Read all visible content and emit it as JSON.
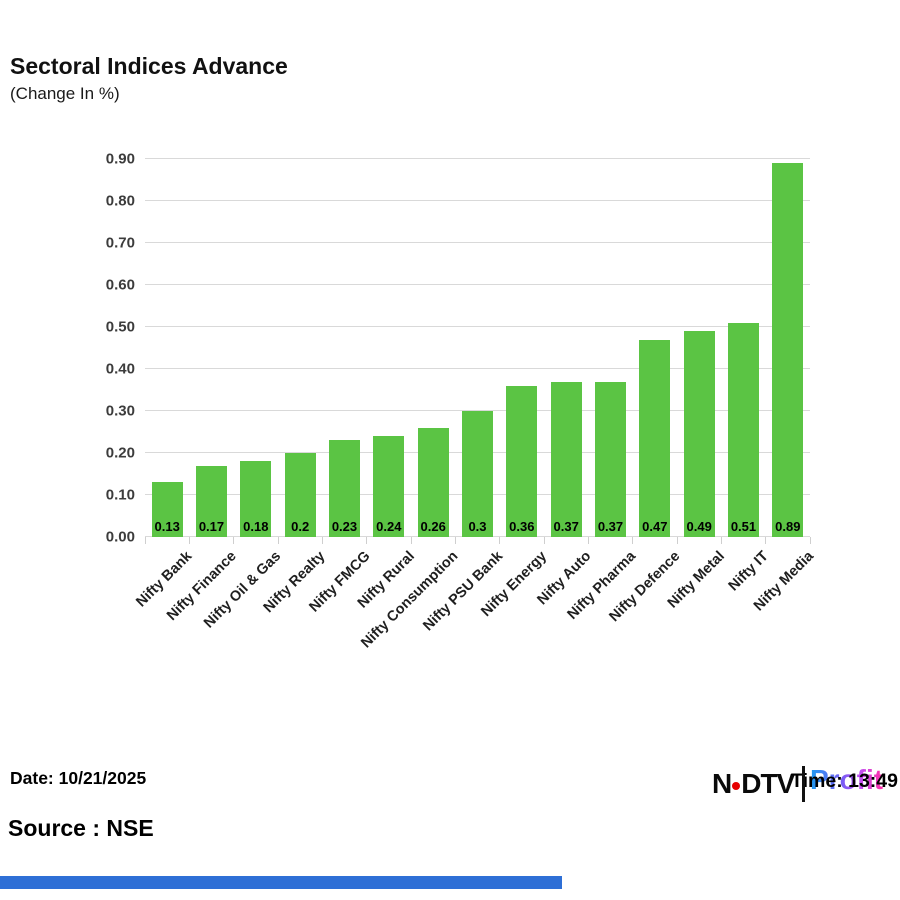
{
  "header": {
    "title": "Sectoral Indices Advance",
    "subtitle": "(Change In %)"
  },
  "chart_data": {
    "type": "bar",
    "title": "Sectoral Indices Advance",
    "subtitle": "(Change In %)",
    "xlabel": "",
    "ylabel": "",
    "categories": [
      "Nifty Bank",
      "Nifty Finance",
      "Nifty Oil & Gas",
      "Nifty Realty",
      "Nifty FMCG",
      "Nifty Rural",
      "Nifty Consumption",
      "Nifty PSU Bank",
      "Nifty Energy",
      "Nifty Auto",
      "Nifty Pharma",
      "Nifty Defence",
      "Nifty Metal",
      "Nifty IT",
      "Nifty Media"
    ],
    "values": [
      0.13,
      0.17,
      0.18,
      0.2,
      0.23,
      0.24,
      0.26,
      0.3,
      0.36,
      0.37,
      0.37,
      0.47,
      0.49,
      0.51,
      0.89
    ],
    "value_labels": [
      "0.13",
      "0.17",
      "0.18",
      "0.2",
      "0.23",
      "0.24",
      "0.26",
      "0.3",
      "0.36",
      "0.37",
      "0.37",
      "0.47",
      "0.49",
      "0.51",
      "0.89"
    ],
    "ylim": [
      0,
      0.9
    ],
    "ytick_labels": [
      "0.00",
      "0.10",
      "0.20",
      "0.30",
      "0.40",
      "0.50",
      "0.60",
      "0.70",
      "0.80",
      "0.90"
    ],
    "grid": true,
    "legend": "none",
    "bar_color": "#5bc444"
  },
  "footer": {
    "date_label": "Date: 10/21/2025",
    "source_label": "Source : NSE",
    "time_label": "Time: 13:49"
  },
  "logo": {
    "ndtv_part1": "N",
    "ndtv_part2": "DTV",
    "profit": "Profit"
  },
  "colors": {
    "bar": "#5bc444",
    "grid": "#d9d9d9",
    "bottom_accent_bar": "#2e6fd6",
    "ndtv_dot": "#e60000",
    "profit_gradient": [
      "#1e9bf0",
      "#7a5cf5",
      "#c44df0",
      "#ff2fa6"
    ]
  }
}
